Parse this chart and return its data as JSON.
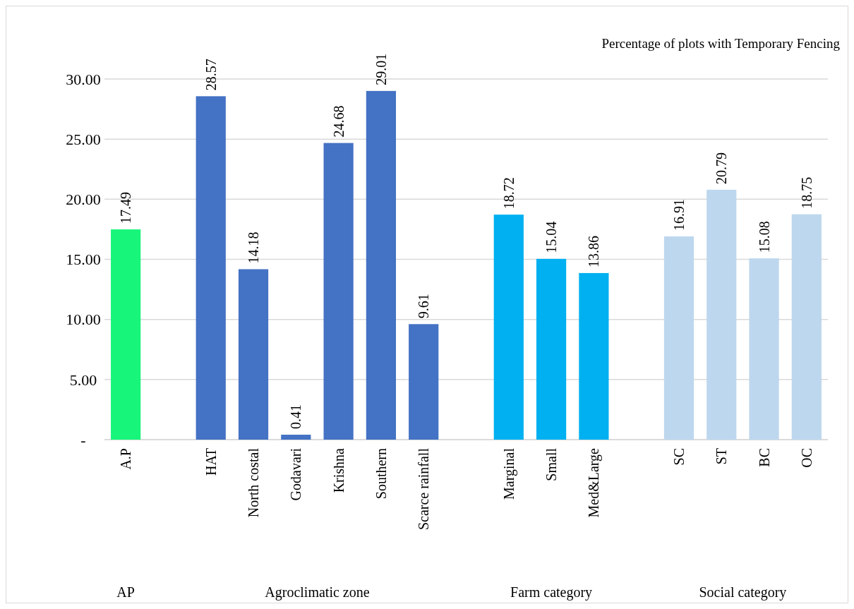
{
  "chart_data": {
    "type": "bar",
    "title": "Percentage of plots with Temporary Fencing",
    "categories": [
      "A.P",
      null,
      "HAT",
      "North costal",
      "Godavari",
      "Krishna",
      "Southern",
      "Scarce rainfall",
      null,
      "Marginal",
      "Small",
      "Med&Large",
      null,
      "SC",
      "ST",
      "BC",
      "OC"
    ],
    "values": [
      17.49,
      null,
      28.57,
      14.18,
      0.41,
      24.68,
      29.01,
      9.61,
      null,
      18.72,
      15.04,
      13.86,
      null,
      16.91,
      20.79,
      15.08,
      18.75
    ],
    "colors": [
      "#17f57a",
      null,
      "#4472c4",
      "#4472c4",
      "#4472c4",
      "#4472c4",
      "#4472c4",
      "#4472c4",
      null,
      "#00b0f0",
      "#00b0f0",
      "#00b0f0",
      null,
      "#bdd7ee",
      "#bdd7ee",
      "#bdd7ee",
      "#bdd7ee"
    ],
    "ylim": [
      0,
      30
    ],
    "yticks": [
      {
        "value": 0,
        "label": "-"
      },
      {
        "value": 5,
        "label": "5.00"
      },
      {
        "value": 10,
        "label": "10.00"
      },
      {
        "value": 15,
        "label": "15.00"
      },
      {
        "value": 20,
        "label": "20.00"
      },
      {
        "value": 25,
        "label": "25.00"
      },
      {
        "value": 30,
        "label": "30.00"
      }
    ],
    "grid": "y",
    "data_labels": true,
    "annotations": [
      "AP",
      "Agroclimatic zone",
      "Farm category",
      "Social category"
    ]
  }
}
